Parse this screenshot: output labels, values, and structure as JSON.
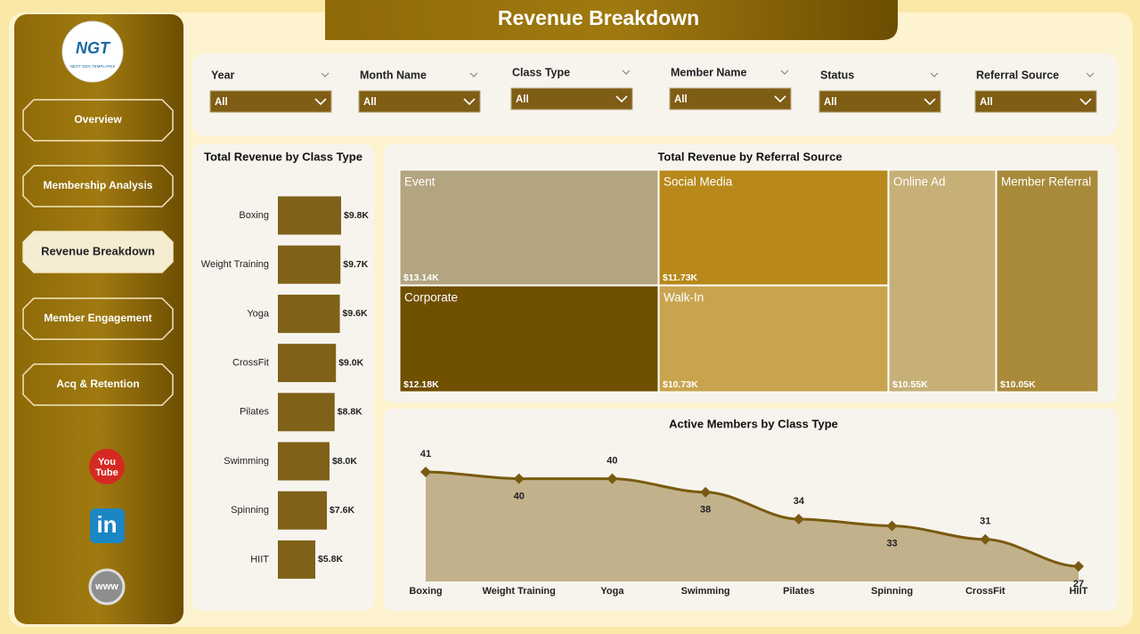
{
  "header": {
    "title": "Revenue Breakdown"
  },
  "logo": {
    "text": "NGT",
    "subtitle": "NEXT GEN TEMPLATES"
  },
  "nav": [
    {
      "label": "Overview",
      "active": false
    },
    {
      "label": "Membership Analysis",
      "active": false
    },
    {
      "label": "Revenue Breakdown",
      "active": true
    },
    {
      "label": "Member Engagement",
      "active": false
    },
    {
      "label": "Acq & Retention",
      "active": false
    }
  ],
  "filters": [
    {
      "label": "Year",
      "value": "All"
    },
    {
      "label": "Month Name",
      "value": "All"
    },
    {
      "label": "Class Type",
      "value": "All"
    },
    {
      "label": "Member Name",
      "value": "All"
    },
    {
      "label": "Status",
      "value": "All"
    },
    {
      "label": "Referral Source",
      "value": "All"
    }
  ],
  "social": [
    [
      "You",
      "Tube"
    ],
    [
      "in"
    ],
    [
      "www"
    ]
  ],
  "chart_data": [
    {
      "type": "bar",
      "title": "Total Revenue by Class Type",
      "categories": [
        "Boxing",
        "Weight Training",
        "Yoga",
        "CrossFit",
        "Pilates",
        "Swimming",
        "Spinning",
        "HIIT"
      ],
      "values": [
        9800,
        9700,
        9600,
        9000,
        8800,
        8000,
        7600,
        5800
      ],
      "value_labels": [
        "$9.8K",
        "$9.7K",
        "$9.6K",
        "$9.0K",
        "$8.8K",
        "$8.0K",
        "$7.6K",
        "$5.8K"
      ],
      "color": "#7f6118"
    },
    {
      "type": "treemap",
      "title": "Total Revenue by Referral Source",
      "categories": [
        "Event",
        "Social Media",
        "Corporate",
        "Walk-In",
        "Online Ad",
        "Member Referral"
      ],
      "values": [
        13140,
        11730,
        12180,
        10730,
        10550,
        10050
      ],
      "value_labels": [
        "$13.14K",
        "$11.73K",
        "$12.18K",
        "$10.73K",
        "$10.55K",
        "$10.05K"
      ],
      "colors": [
        "#b3a580",
        "#b8891a",
        "#6f4f00",
        "#c9a44f",
        "#c6b077",
        "#a88a3a"
      ]
    },
    {
      "type": "area",
      "title": "Active Members by Class Type",
      "categories": [
        "Boxing",
        "Weight Training",
        "Yoga",
        "Swimming",
        "Pilates",
        "Spinning",
        "CrossFit",
        "HIIT"
      ],
      "values": [
        41,
        40,
        40,
        38,
        34,
        33,
        31,
        27
      ],
      "color": "#7a5a10",
      "fill": "#c2b28c"
    }
  ]
}
